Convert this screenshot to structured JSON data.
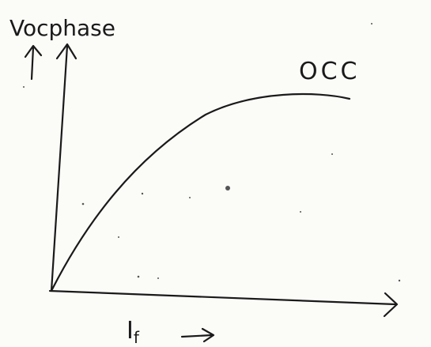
{
  "labels": {
    "y_axis": "Vocphase",
    "curve": "OCC",
    "x_axis": {
      "symbol": "I",
      "subscript": "f"
    }
  }
}
